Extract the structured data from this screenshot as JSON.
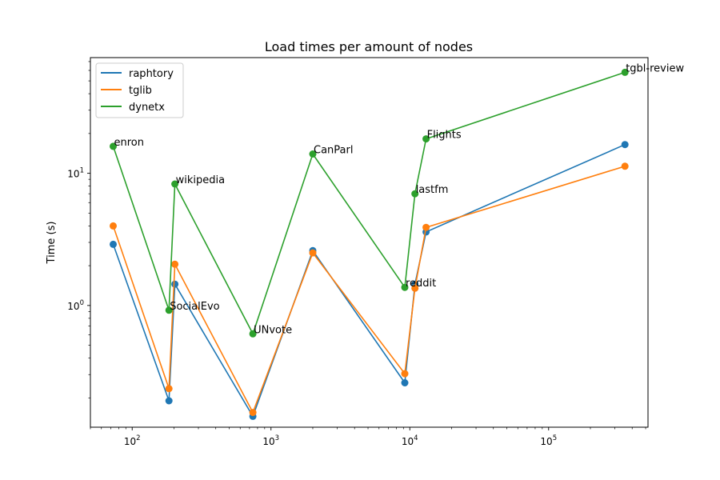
{
  "chart_data": {
    "type": "line",
    "title": "Load times per amount of nodes",
    "xlabel": "",
    "ylabel": "Time (s)",
    "x_scale": "log",
    "y_scale": "log",
    "xlim": [
      50,
      520000
    ],
    "ylim": [
      0.12,
      75
    ],
    "grid": false,
    "legend_position": "top-left",
    "x_ticks": [
      {
        "value": 100,
        "base": "10",
        "exp": "2"
      },
      {
        "value": 1000,
        "base": "10",
        "exp": "3"
      },
      {
        "value": 10000,
        "base": "10",
        "exp": "4"
      },
      {
        "value": 100000,
        "base": "10",
        "exp": "5"
      }
    ],
    "y_ticks": [
      {
        "value": 1,
        "base": "10",
        "exp": "0"
      },
      {
        "value": 10,
        "base": "10",
        "exp": "1"
      }
    ],
    "datasets": [
      {
        "label": "enron",
        "nodes": 73
      },
      {
        "label": "SocialEvo",
        "nodes": 184
      },
      {
        "label": "wikipedia",
        "nodes": 203
      },
      {
        "label": "UNvote",
        "nodes": 740
      },
      {
        "label": "CanParl",
        "nodes": 2000
      },
      {
        "label": "reddit",
        "nodes": 9200
      },
      {
        "label": "lastfm",
        "nodes": 10900
      },
      {
        "label": "Flights",
        "nodes": 13100
      },
      {
        "label": "tgbl-review",
        "nodes": 355000
      }
    ],
    "series": [
      {
        "name": "raphtory",
        "color": "#1f77b4",
        "x": [
          73,
          184,
          203,
          740,
          2000,
          9200,
          10900,
          13100,
          355000
        ],
        "values": [
          2.9,
          0.19,
          1.45,
          0.145,
          2.6,
          0.26,
          1.45,
          3.6,
          16.5
        ]
      },
      {
        "name": "tglib",
        "color": "#ff7f0e",
        "x": [
          73,
          184,
          203,
          740,
          2000,
          9200,
          10900,
          13100,
          355000
        ],
        "values": [
          4.0,
          0.235,
          2.05,
          0.155,
          2.5,
          0.305,
          1.35,
          3.9,
          11.3
        ]
      },
      {
        "name": "dynetx",
        "color": "#2ca02c",
        "x": [
          73,
          184,
          203,
          740,
          2000,
          9200,
          10900,
          13100,
          355000
        ],
        "values": [
          16.0,
          0.92,
          8.3,
          0.61,
          14.0,
          1.37,
          7.0,
          18.2,
          58.0
        ]
      }
    ]
  }
}
